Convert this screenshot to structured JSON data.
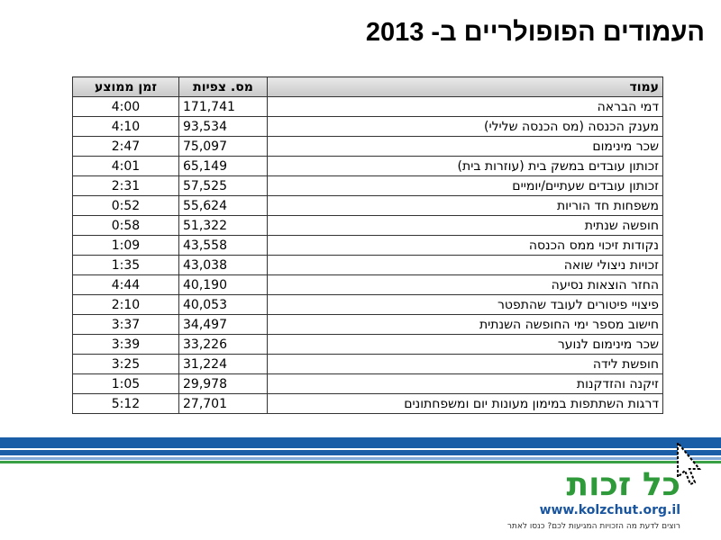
{
  "header": {
    "title": "העמודים הפופולריים ב- 2013"
  },
  "table": {
    "columns": [
      "עמוד",
      "מס. צפיות",
      "זמן ממוצע"
    ],
    "rows": [
      [
        "דמי הבראה",
        "171,741",
        "4:00"
      ],
      [
        "מענק הכנסה (מס הכנסה שלילי)",
        "93,534",
        "4:10"
      ],
      [
        "שכר מינימום",
        "75,097",
        "2:47"
      ],
      [
        "זכותון עובדים במשק בית (עוזרות בית)",
        "65,149",
        "4:01"
      ],
      [
        "זכותון עובדים שעתיים/יומיים",
        "57,525",
        "2:31"
      ],
      [
        "משפחות חד הוריות",
        "55,624",
        "0:52"
      ],
      [
        "חופשה שנתית",
        "51,322",
        "0:58"
      ],
      [
        "נקודות זיכוי ממס הכנסה",
        "43,558",
        "1:09"
      ],
      [
        "זכויות ניצולי שואה",
        "43,038",
        "1:35"
      ],
      [
        "החזר הוצאות נסיעה",
        "40,190",
        "4:44"
      ],
      [
        "פיצויי פיטורים לעובד שהתפטר",
        "40,053",
        "2:10"
      ],
      [
        "חישוב מספר ימי החופשה השנתית",
        "34,497",
        "3:37"
      ],
      [
        "שכר מינימום לנוער",
        "33,226",
        "3:39"
      ],
      [
        "חופשת לידה",
        "31,224",
        "3:25"
      ],
      [
        "זיקנה והזדקנות",
        "29,978",
        "1:05"
      ],
      [
        "דרגות השתתפות במימון מעונות יום ומשפחתונים",
        "27,701",
        "5:12"
      ]
    ]
  },
  "footer": {
    "logo": "כל זכות",
    "url": "www.kolzchut.org.il",
    "tagline": "רוצים לדעת מה הזכויות המגיעות לכם? כנסו לאתר"
  }
}
